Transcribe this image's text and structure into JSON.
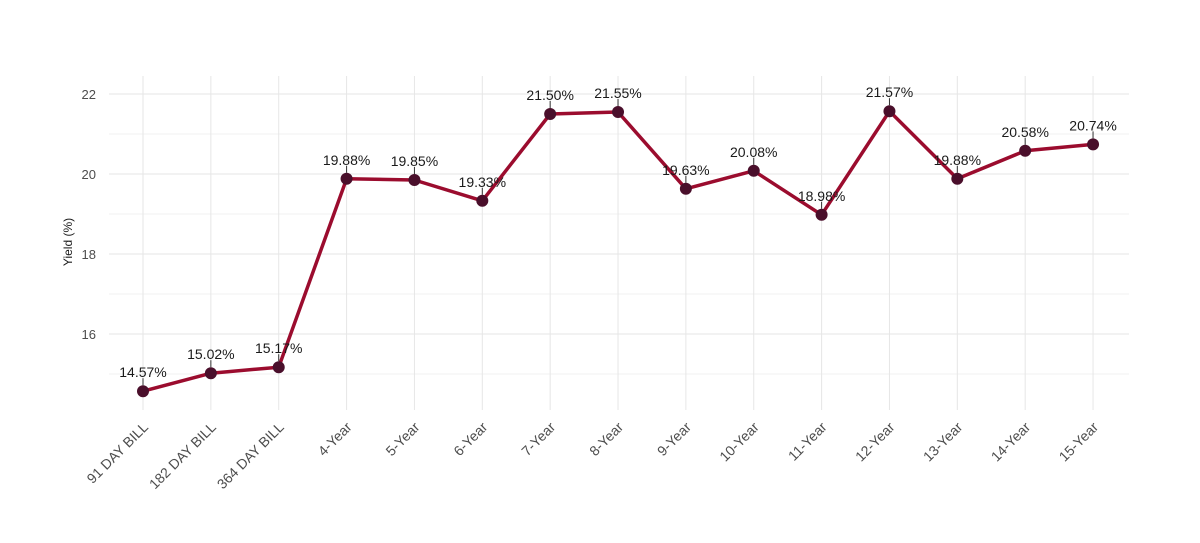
{
  "chart_data": {
    "type": "line",
    "categories": [
      "91 DAY BILL",
      "182 DAY BILL",
      "364 DAY BILL",
      "4-Year",
      "5-Year",
      "6-Year",
      "7-Year",
      "8-Year",
      "9-Year",
      "10-Year",
      "11-Year",
      "12-Year",
      "13-Year",
      "14-Year",
      "15-Year"
    ],
    "values": [
      14.57,
      15.02,
      15.17,
      19.88,
      19.85,
      19.33,
      21.5,
      21.55,
      19.63,
      20.08,
      18.98,
      21.57,
      19.88,
      20.58,
      20.74
    ],
    "data_labels": [
      "14.57%",
      "15.02%",
      "15.17%",
      "19.88%",
      "19.85%",
      "19.33%",
      "21.50%",
      "21.55%",
      "19.63%",
      "20.08%",
      "18.98%",
      "21.57%",
      "19.88%",
      "20.58%",
      "20.74%"
    ],
    "title": "",
    "xlabel": "",
    "ylabel": "Yield (%)",
    "yticks": [
      16,
      18,
      20,
      22
    ],
    "ylim": [
      14.1,
      22.45
    ],
    "grid": true,
    "legend": "none",
    "colors": {
      "line": "#9b0c2e",
      "point": "#4a0f2b",
      "grid": "#e6e6e6"
    }
  }
}
